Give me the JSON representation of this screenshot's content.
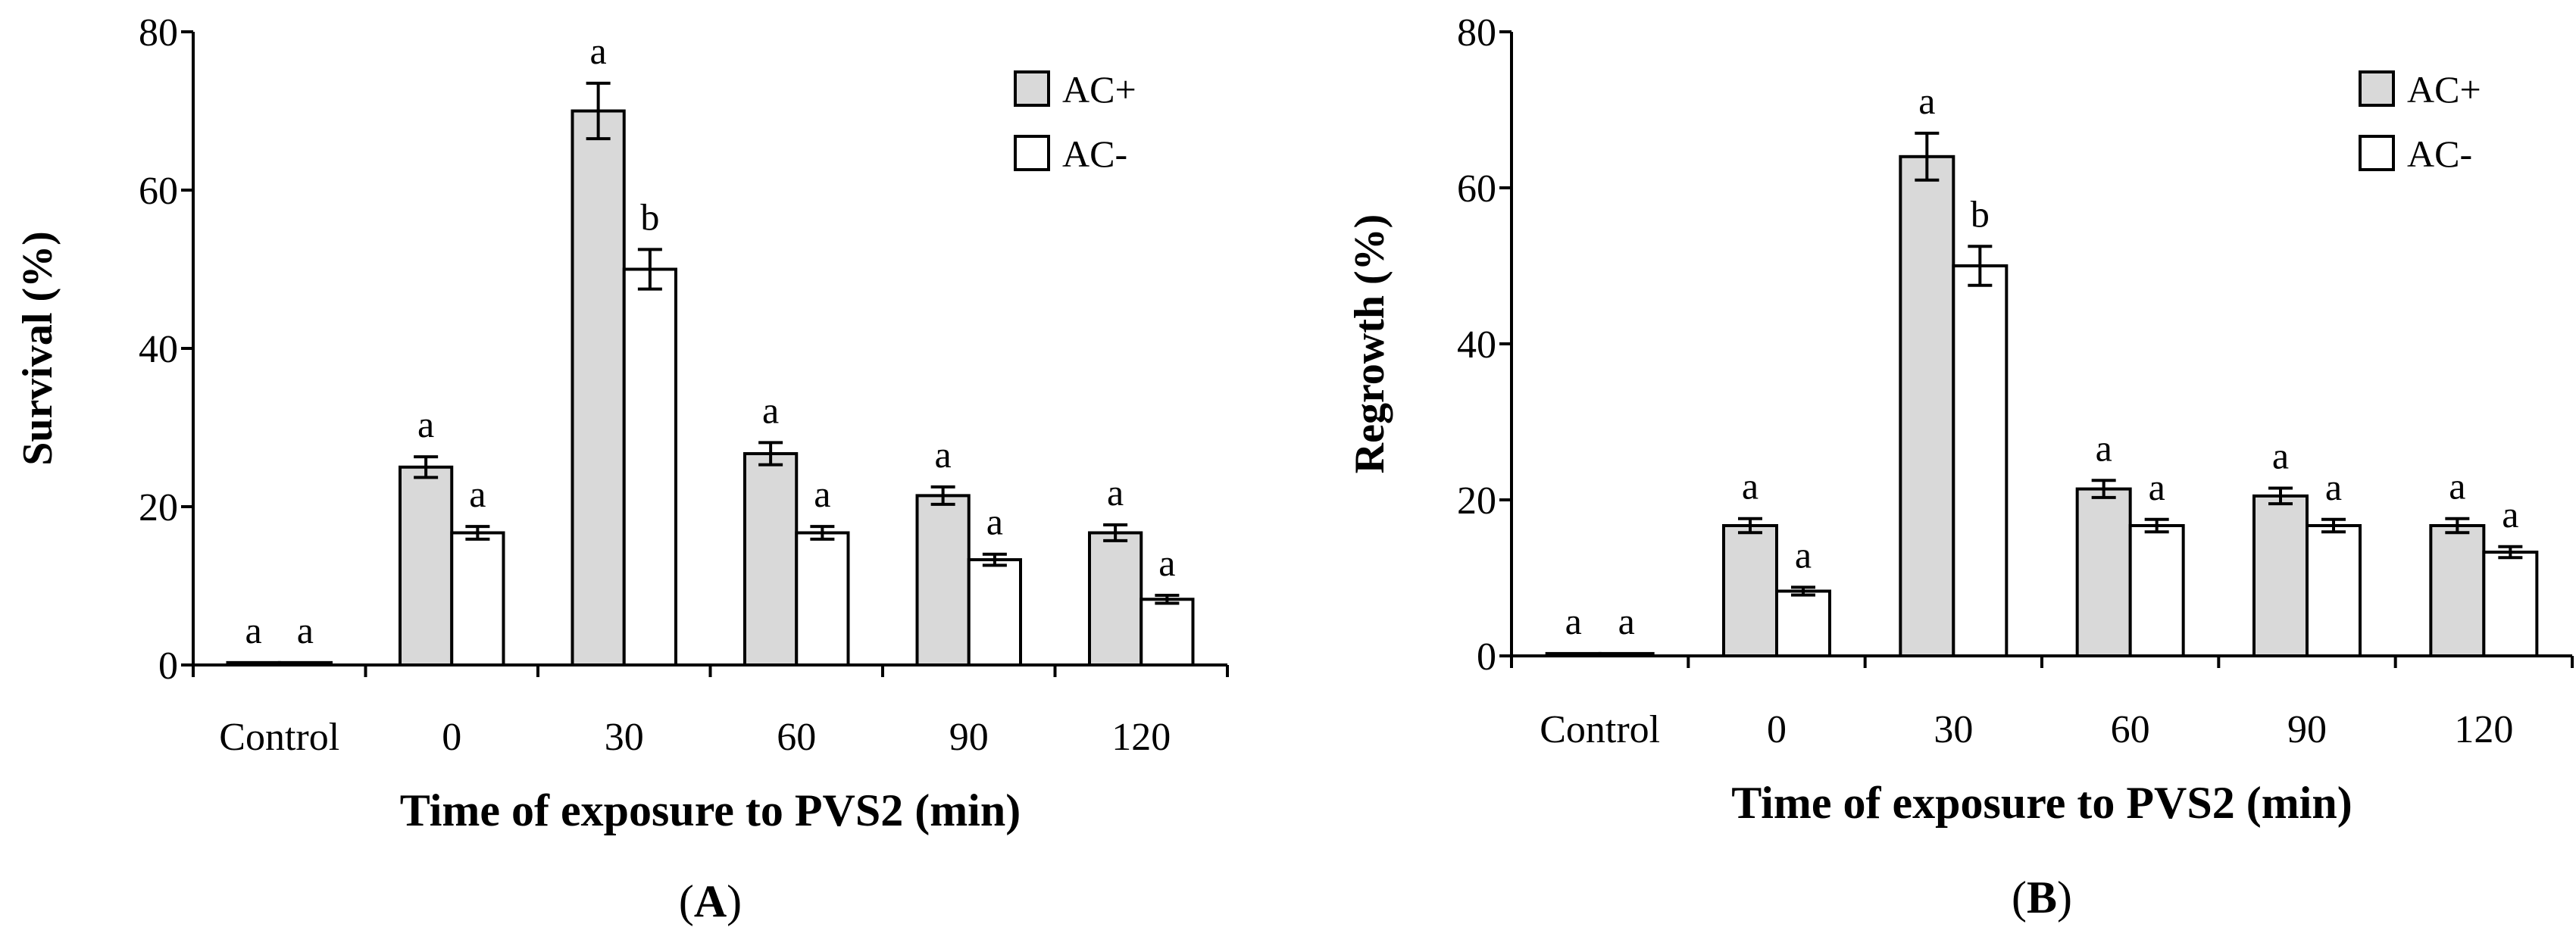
{
  "chart_data": [
    {
      "type": "bar",
      "panel_label": "A",
      "categories": [
        "Control",
        "0",
        "30",
        "60",
        "90",
        "120"
      ],
      "xlabel": "Time of exposure to PVS2 (min)",
      "ylabel": "Survival (%)",
      "ylim": [
        0,
        80
      ],
      "yticks": [
        "0",
        "20",
        "40",
        "60",
        "80"
      ],
      "legend_position": "top-right",
      "series": [
        {
          "name": "AC+",
          "color": "#d9d9d9",
          "values": [
            0.3,
            25,
            70,
            26.7,
            21.4,
            16.7
          ],
          "errors": [
            0,
            1.3,
            3.5,
            1.4,
            1.1,
            1.0
          ],
          "letters": [
            "a",
            "a",
            "a",
            "a",
            "a",
            "a"
          ]
        },
        {
          "name": "AC-",
          "color": "#ffffff",
          "values": [
            0.3,
            16.7,
            50,
            16.7,
            13.3,
            8.3
          ],
          "errors": [
            0,
            0.8,
            2.5,
            0.8,
            0.7,
            0.5
          ],
          "letters": [
            "a",
            "a",
            "b",
            "a",
            "a",
            "a"
          ]
        }
      ]
    },
    {
      "type": "bar",
      "panel_label": "B",
      "categories": [
        "Control",
        "0",
        "30",
        "60",
        "90",
        "120"
      ],
      "xlabel": "Time of exposure to PVS2 (min)",
      "ylabel": "Regrowth (%)",
      "ylim": [
        0,
        80
      ],
      "yticks": [
        "0",
        "20",
        "40",
        "60",
        "80"
      ],
      "legend_position": "top-right",
      "series": [
        {
          "name": "AC+",
          "color": "#d9d9d9",
          "values": [
            0.3,
            16.7,
            64,
            21.4,
            20.5,
            16.7
          ],
          "errors": [
            0,
            0.9,
            3.0,
            1.1,
            1.0,
            0.9
          ],
          "letters": [
            "a",
            "a",
            "a",
            "a",
            "a",
            "a"
          ]
        },
        {
          "name": "AC-",
          "color": "#ffffff",
          "values": [
            0.3,
            8.3,
            50,
            16.7,
            16.7,
            13.3
          ],
          "errors": [
            0,
            0.5,
            2.5,
            0.8,
            0.8,
            0.7
          ],
          "letters": [
            "a",
            "a",
            "b",
            "a",
            "a",
            "a"
          ]
        }
      ]
    }
  ]
}
